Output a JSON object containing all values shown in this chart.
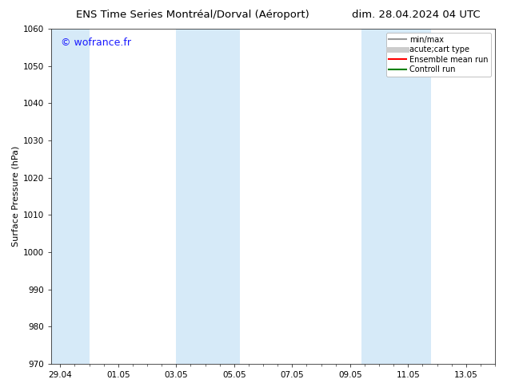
{
  "title_left": "ENS Time Series Montréal/Dorval (Aéroport)",
  "title_right": "dim. 28.04.2024 04 UTC",
  "ylabel": "Surface Pressure (hPa)",
  "ylim": [
    970,
    1060
  ],
  "yticks": [
    970,
    980,
    990,
    1000,
    1010,
    1020,
    1030,
    1040,
    1050,
    1060
  ],
  "xtick_labels": [
    "29.04",
    "01.05",
    "03.05",
    "05.05",
    "07.05",
    "09.05",
    "11.05",
    "13.05"
  ],
  "xtick_positions": [
    0,
    2,
    4,
    6,
    8,
    10,
    12,
    14
  ],
  "xlim": [
    -0.3,
    15.0
  ],
  "watermark": "© wofrance.fr",
  "watermark_color": "#1a1aff",
  "bg_color": "#ffffff",
  "plot_bg_color": "#ffffff",
  "shaded_band_color": "#d6eaf8",
  "band_ranges": [
    [
      -0.3,
      1.0
    ],
    [
      4.0,
      6.2
    ],
    [
      10.4,
      12.8
    ]
  ],
  "legend_items": [
    {
      "label": "min/max",
      "color": "#999999",
      "lw": 1.5,
      "ls": "-"
    },
    {
      "label": "acute;cart type",
      "color": "#cccccc",
      "lw": 5,
      "ls": "-"
    },
    {
      "label": "Ensemble mean run",
      "color": "#ff0000",
      "lw": 1.5,
      "ls": "-"
    },
    {
      "label": "Controll run",
      "color": "#008000",
      "lw": 1.5,
      "ls": "-"
    }
  ],
  "title_fontsize": 9.5,
  "tick_fontsize": 7.5,
  "ylabel_fontsize": 8,
  "watermark_fontsize": 9,
  "legend_fontsize": 7
}
